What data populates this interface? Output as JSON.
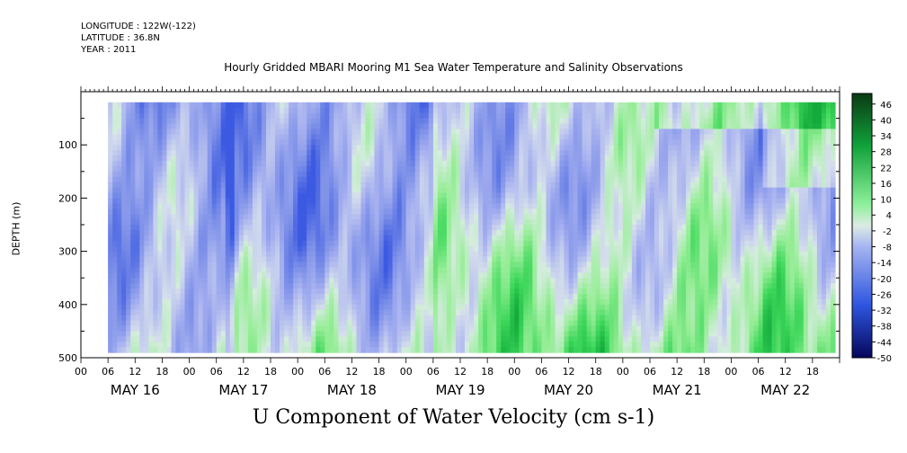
{
  "header": {
    "longitude": "LONGITUDE : 122W(-122)",
    "latitude": "LATITUDE : 36.8N",
    "year": "YEAR : 2011"
  },
  "chart_data": {
    "type": "heatmap",
    "title": "Hourly Gridded MBARI Mooring M1 Sea Water Temperature and Salinity Observations",
    "xlabel": "U Component of Water Velocity (cm s-1)",
    "ylabel": "DEPTH (m)",
    "ylim": [
      500,
      0
    ],
    "yticks": [
      100,
      200,
      300,
      400,
      500
    ],
    "ytick_labels": [
      "100",
      "200",
      "300",
      "400",
      "500"
    ],
    "x_hour_ticks": [
      "00",
      "06",
      "12",
      "18",
      "00",
      "06",
      "12",
      "18",
      "00",
      "06",
      "12",
      "18",
      "00",
      "06",
      "12",
      "18",
      "00",
      "06",
      "12",
      "18",
      "00",
      "06",
      "12",
      "18",
      "00",
      "06",
      "12",
      "18"
    ],
    "x_day_labels": [
      "MAY 16",
      "MAY 17",
      "MAY 18",
      "MAY 19",
      "MAY 20",
      "MAY 21",
      "MAY 22"
    ],
    "x_range_hours": [
      0,
      168
    ],
    "data_range_hours": [
      6,
      167
    ],
    "depth_range": [
      20,
      485
    ],
    "colorbar": {
      "levels": [
        46,
        40,
        34,
        28,
        22,
        16,
        10,
        4,
        -2,
        -8,
        -14,
        -20,
        -26,
        -32,
        -38,
        -44,
        -50
      ],
      "labels": [
        "46",
        "40",
        "34",
        "28",
        "22",
        "16",
        "10",
        "4",
        "-2",
        "-8",
        "-14",
        "-20",
        "-26",
        "-32",
        "-38",
        "-44",
        "-50"
      ],
      "min": -50,
      "max": 50
    },
    "summary": {
      "upper_layer_0_300m_early_days": "mostly negative (-5 to -20 cm/s)",
      "lower_layer_300_480m": "mostly positive (5 to 20 cm/s)",
      "late_days_surface": "mixed, positive near surface"
    }
  }
}
